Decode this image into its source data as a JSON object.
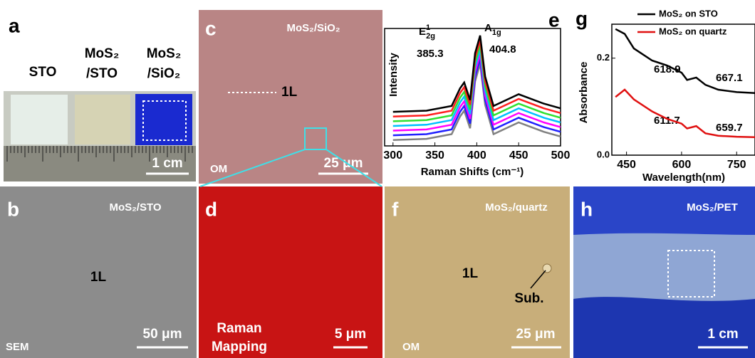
{
  "panels": {
    "a": {
      "letter": "a",
      "labels": [
        "STO",
        "MoS₂",
        "/STO",
        "MoS₂",
        "/SiO₂"
      ],
      "scale": "1 cm"
    },
    "c": {
      "letter": "c",
      "title": "MoS₂/SiO₂",
      "layer": "1L",
      "method": "OM",
      "scale": "25 μm"
    },
    "b": {
      "letter": "b",
      "title": "MoS₂/STO",
      "layer": "1L",
      "method": "SEM",
      "scale": "50 μm"
    },
    "d": {
      "letter": "d",
      "method": [
        "Raman",
        "Mapping"
      ],
      "scale": "5 μm"
    },
    "f": {
      "letter": "f",
      "title": "MoS₂/quartz",
      "layer": "1L",
      "note": "Sub.",
      "method": "OM",
      "scale": "25 μm"
    },
    "h": {
      "letter": "h",
      "title": "MoS₂/PET",
      "scale": "1 cm"
    }
  },
  "chart_data": [
    {
      "type": "line",
      "letter": "e",
      "xlabel": "Raman Shifts (cm⁻¹)",
      "ylabel": "Intensity",
      "annotations": {
        "e_mode": {
          "base": "E",
          "sup": "1",
          "sub": "2g"
        },
        "a_mode": {
          "base": "A",
          "sub": "1g"
        },
        "e_pos": "385.3",
        "a_pos": "404.8"
      },
      "x": [
        300,
        340,
        370,
        380,
        385,
        392,
        398,
        404,
        410,
        420,
        450,
        480,
        500
      ],
      "xlim": [
        290,
        500
      ],
      "ylim": [
        0,
        1
      ],
      "xticks": [
        300,
        350,
        400,
        450,
        500
      ],
      "series": [
        {
          "color": "#808080",
          "values": [
            0.05,
            0.06,
            0.1,
            0.25,
            0.3,
            0.15,
            0.55,
            0.7,
            0.35,
            0.1,
            0.2,
            0.12,
            0.08
          ]
        },
        {
          "color": "#2020ff",
          "values": [
            0.09,
            0.1,
            0.14,
            0.29,
            0.34,
            0.19,
            0.59,
            0.74,
            0.39,
            0.14,
            0.24,
            0.16,
            0.12
          ]
        },
        {
          "color": "#ff00ff",
          "values": [
            0.13,
            0.14,
            0.18,
            0.33,
            0.38,
            0.23,
            0.63,
            0.78,
            0.43,
            0.18,
            0.28,
            0.2,
            0.16
          ]
        },
        {
          "color": "#00c0ff",
          "values": [
            0.17,
            0.18,
            0.22,
            0.37,
            0.42,
            0.27,
            0.67,
            0.82,
            0.47,
            0.22,
            0.32,
            0.24,
            0.2
          ]
        },
        {
          "color": "#30e030",
          "values": [
            0.21,
            0.22,
            0.26,
            0.41,
            0.46,
            0.31,
            0.71,
            0.86,
            0.51,
            0.26,
            0.36,
            0.28,
            0.24
          ]
        },
        {
          "color": "#ff2020",
          "values": [
            0.25,
            0.26,
            0.3,
            0.45,
            0.5,
            0.35,
            0.75,
            0.9,
            0.55,
            0.3,
            0.4,
            0.32,
            0.28
          ]
        },
        {
          "color": "#000000",
          "values": [
            0.29,
            0.3,
            0.34,
            0.49,
            0.54,
            0.39,
            0.79,
            0.94,
            0.59,
            0.34,
            0.44,
            0.36,
            0.32
          ]
        }
      ]
    },
    {
      "type": "line",
      "letter": "g",
      "xlabel": "Wavelength(nm)",
      "ylabel": "Absorbance",
      "annotations": {
        "sto_a": "618.9",
        "sto_b": "667.1",
        "q_a": "611.7",
        "q_b": "659.7"
      },
      "x": [
        420,
        445,
        470,
        520,
        560,
        600,
        615,
        640,
        665,
        700,
        750,
        800
      ],
      "xlim": [
        410,
        800
      ],
      "ylim": [
        0,
        0.27
      ],
      "xticks": [
        450,
        600,
        750
      ],
      "yticks": [
        {
          "value": 0,
          "label": "0.0"
        },
        {
          "value": 0.2,
          "label": "0.2"
        }
      ],
      "series": [
        {
          "name": "MoS₂ on STO",
          "color": "#000000",
          "values": [
            0.26,
            0.25,
            0.22,
            0.195,
            0.185,
            0.17,
            0.155,
            0.16,
            0.145,
            0.135,
            0.13,
            0.128
          ]
        },
        {
          "name": "MoS₂ on quartz",
          "color": "#e01010",
          "values": [
            0.12,
            0.135,
            0.115,
            0.09,
            0.075,
            0.065,
            0.055,
            0.06,
            0.045,
            0.04,
            0.038,
            0.037
          ]
        }
      ]
    }
  ]
}
